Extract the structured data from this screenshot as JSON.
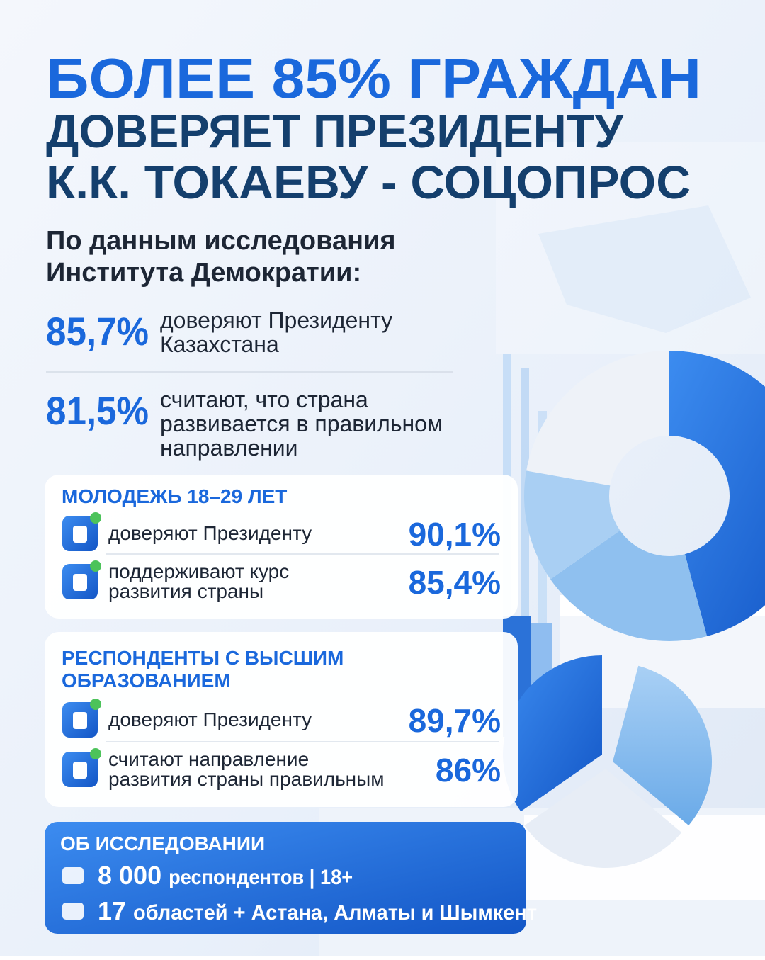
{
  "headline": {
    "lines": [
      "БОЛЕЕ 85% ГРАЖДАН",
      "ДОВЕРЯЕТ ПРЕЗИДЕНТУ",
      "К.К. ТОКАЕВУ - СОЦОПРОС"
    ]
  },
  "source": {
    "lines": [
      "По данным исследования",
      "Института Демократии:"
    ]
  },
  "stats": [
    {
      "value": "85,7%",
      "lines": [
        "доверяют Президенту",
        "Казахстана"
      ]
    },
    {
      "value": "81,5%",
      "lines": [
        "считают, что страна",
        "развивается в правильном",
        "направлении"
      ]
    }
  ],
  "cards": [
    {
      "title": [
        "МОЛОДЕЖЬ 18–29 ЛЕТ"
      ],
      "rows": [
        {
          "lines": [
            "доверяют Президенту"
          ],
          "value": "90,1%"
        },
        {
          "lines": [
            "поддерживают курс",
            "развития страны"
          ],
          "value": "85,4%"
        }
      ]
    },
    {
      "title": [
        "РЕСПОНДЕНТЫ С ВЫСШИМ",
        "ОБРАЗОВАНИЕМ"
      ],
      "rows": [
        {
          "lines": [
            "доверяют Президенту"
          ],
          "value": "89,7%"
        },
        {
          "lines": [
            "считают направление",
            "развития страны правильным"
          ],
          "value": "86%"
        }
      ]
    }
  ],
  "about": {
    "title": "ОБ ИССЛЕДОВАНИИ",
    "items": [
      {
        "number": "8 000",
        "text": "респондентов | 18+"
      },
      {
        "number": "17",
        "text": "областей + Астана, Алматы и Шымкент"
      }
    ]
  }
}
